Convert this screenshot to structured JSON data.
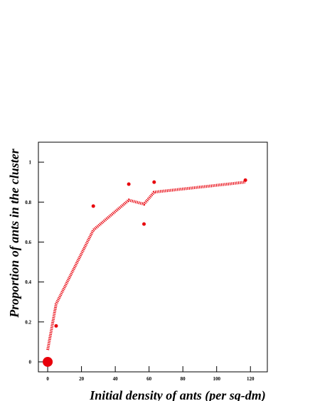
{
  "chart_data": {
    "type": "scatter",
    "x_label": "Initial density of ants (per sq-dm)",
    "y_label": "Proportion of ants in the cluster",
    "xlim": [
      -5.5,
      130
    ],
    "ylim": [
      -0.05,
      1.1
    ],
    "xticks": [
      0,
      20,
      40,
      60,
      80,
      100,
      120
    ],
    "yticks": [
      0,
      0.2,
      0.4,
      0.6,
      0.8,
      1
    ],
    "series": [
      {
        "type": "line",
        "color": "#e8000b",
        "x": [
          0,
          5,
          27,
          48,
          57,
          63,
          117
        ],
        "values": [
          0.06,
          0.29,
          0.66,
          0.81,
          0.79,
          0.85,
          0.9
        ]
      },
      {
        "type": "scatter",
        "color": "#e8000b",
        "size": 2.5,
        "x": [
          5,
          27,
          48,
          57,
          63,
          117
        ],
        "values": [
          0.18,
          0.78,
          0.89,
          0.69,
          0.9,
          0.91
        ]
      },
      {
        "type": "scatter",
        "color": "#e8000b",
        "size": 7,
        "x": [
          0
        ],
        "values": [
          0
        ]
      }
    ]
  }
}
